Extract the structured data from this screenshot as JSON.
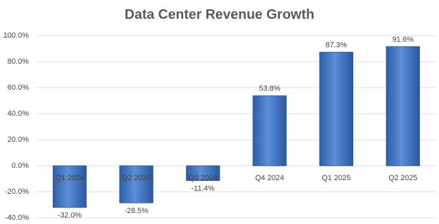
{
  "chart_data": {
    "type": "bar",
    "title": "Data Center Revenue Growth",
    "categories": [
      "Q1 2024",
      "Q2 2024",
      "Q3 2024",
      "Q4 2024",
      "Q1 2025",
      "Q2 2025"
    ],
    "values": [
      -32.0,
      -28.5,
      -11.4,
      53.8,
      87.3,
      91.6
    ],
    "value_labels": [
      "-32.0%",
      "-28.5%",
      "-11.4%",
      "53.8%",
      "87.3%",
      "91.6%"
    ],
    "color": "#4472c4",
    "ylim": [
      -40,
      100
    ],
    "yticks": [
      {
        "value": -40,
        "label": "-40.0%"
      },
      {
        "value": -20,
        "label": "-20.0%"
      },
      {
        "value": 0,
        "label": "0.0%"
      },
      {
        "value": 20,
        "label": "20.0%"
      },
      {
        "value": 40,
        "label": "40.0%"
      },
      {
        "value": 60,
        "label": "60.0%"
      },
      {
        "value": 80,
        "label": "80.0%"
      },
      {
        "value": 100,
        "label": "100.0%"
      }
    ],
    "grid": true
  }
}
